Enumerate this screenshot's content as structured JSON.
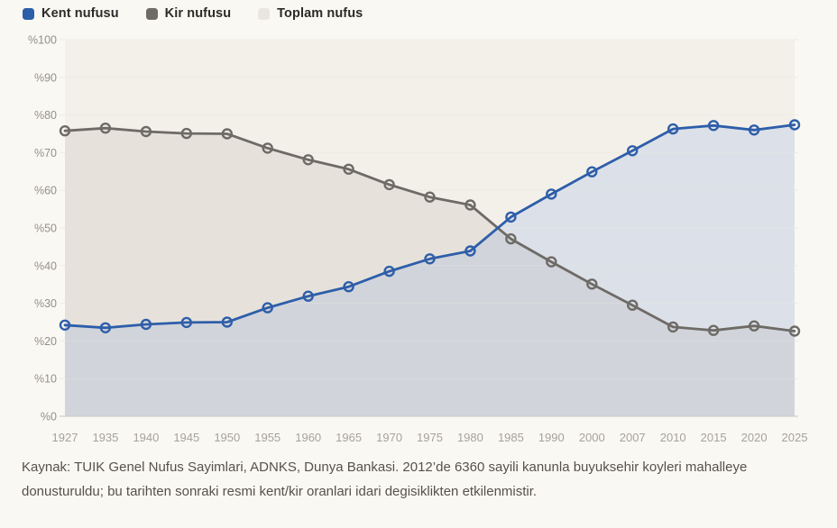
{
  "legend": {
    "items": [
      {
        "label": "Kent nufusu",
        "color": "#2e5ea9"
      },
      {
        "label": "Kir nufusu",
        "color": "#6e6b66"
      },
      {
        "label": "Toplam nufus",
        "color": "#e9e6e0"
      }
    ]
  },
  "caption": "Kaynak: TUIK Genel Nufus Sayimlari, ADNKS, Dunya Bankasi. 2012’de 6360 sayili kanunla buyuksehir koyleri mahalleye donusturuldu; bu tarihten sonraki resmi kent/kir oranlari idari degisiklikten etkilenmistir.",
  "chart_data": {
    "type": "line",
    "title": "",
    "xlabel": "",
    "ylabel": "",
    "categories": [
      "1927",
      "1935",
      "1940",
      "1945",
      "1950",
      "1955",
      "1960",
      "1965",
      "1970",
      "1975",
      "1980",
      "1985",
      "1990",
      "2000",
      "2007",
      "2010",
      "2015",
      "2020",
      "2025"
    ],
    "series": [
      {
        "name": "Kent nufusu",
        "color": "#2e5ea9",
        "fill": "rgba(70,120,230,0.13)",
        "show_line": true,
        "values": [
          24.2,
          23.5,
          24.4,
          24.9,
          25.0,
          28.8,
          31.9,
          34.4,
          38.5,
          41.8,
          43.9,
          52.9,
          59.0,
          64.9,
          70.5,
          76.3,
          77.2,
          76.0,
          77.4
        ]
      },
      {
        "name": "Kir nufusu",
        "color": "#6e6b66",
        "fill": "rgba(95,90,82,0.09)",
        "show_line": true,
        "values": [
          75.8,
          76.5,
          75.6,
          75.1,
          75.0,
          71.2,
          68.1,
          65.6,
          61.5,
          58.2,
          56.1,
          47.1,
          41.0,
          35.1,
          29.5,
          23.7,
          22.8,
          24.0,
          22.6
        ]
      },
      {
        "name": "Toplam nufus",
        "color": "#e9e6e0",
        "fill": "rgba(150,142,128,0.07)",
        "show_line": false,
        "values": [
          100,
          100,
          100,
          100,
          100,
          100,
          100,
          100,
          100,
          100,
          100,
          100,
          100,
          100,
          100,
          100,
          100,
          100,
          100
        ]
      }
    ],
    "ylim": [
      0,
      100
    ],
    "ytick_step": 10,
    "ytick_prefix": "%",
    "grid": true,
    "legend_position": "top-left",
    "area_fill": true
  }
}
